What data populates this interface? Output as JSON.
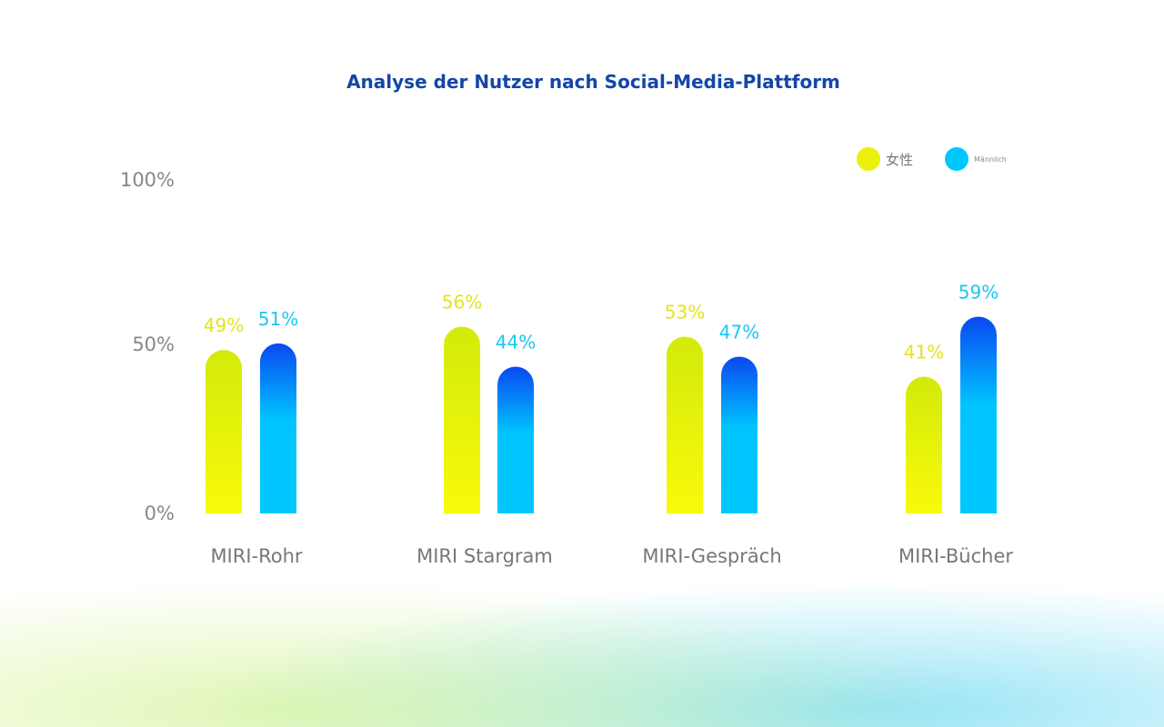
{
  "chart_data": {
    "type": "bar",
    "title": "Analyse der Nutzer nach Social-Media-Plattform",
    "categories": [
      "MIRI-Rohr",
      "MIRI Stargram",
      "MIRI-Gespräch",
      "MIRI-Bücher"
    ],
    "series": [
      {
        "name": "女性",
        "values": [
          49,
          56,
          53,
          41
        ],
        "color": "#eaf00c"
      },
      {
        "name": "Männlich",
        "values": [
          51,
          44,
          47,
          59
        ],
        "color": "#00c8ff"
      }
    ],
    "value_labels": {
      "女性": [
        "49%",
        "56%",
        "53%",
        "41%"
      ],
      "Männlich": [
        "51%",
        "44%",
        "47%",
        "59%"
      ]
    },
    "yticks": [
      "0%",
      "50%",
      "100%"
    ],
    "ylim": [
      0,
      100
    ],
    "grid": false,
    "legend": "top-right"
  }
}
